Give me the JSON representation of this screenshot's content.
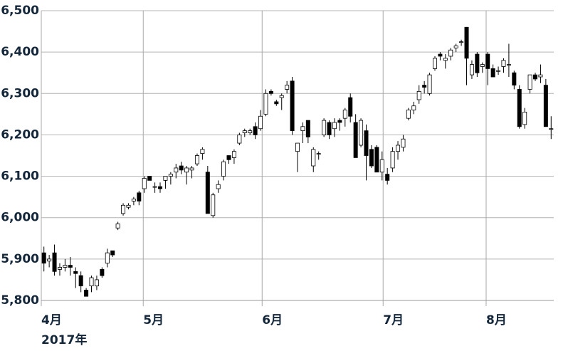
{
  "chart_data": {
    "type": "candlestick",
    "open": [
      5915,
      5895,
      5915,
      5875,
      5880,
      5885,
      5870,
      5860,
      5825,
      5835,
      5835,
      5875,
      5890,
      5920,
      5975,
      6010,
      6025,
      6040,
      6060,
      6070,
      6100,
      6075,
      6075,
      6090,
      6100,
      6110,
      6125,
      6110,
      6115,
      6130,
      6155,
      6110,
      6005,
      6070,
      6100,
      6150,
      6145,
      6180,
      6205,
      6205,
      6220,
      6215,
      6250,
      6305,
      6280,
      6290,
      6310,
      6330,
      6160,
      6210,
      6235,
      6125,
      6155,
      6200,
      6230,
      6215,
      6235,
      6240,
      6290,
      6230,
      6175,
      6210,
      6165,
      6170,
      6110,
      6105,
      6120,
      6160,
      6170,
      6240,
      6260,
      6285,
      6320,
      6300,
      6360,
      6395,
      6380,
      6390,
      6410,
      6425,
      6460,
      6345,
      6395,
      6365,
      6395,
      6360,
      6355,
      6365,
      6370,
      6350,
      6310,
      6225,
      6310,
      6345,
      6340,
      6320,
      6215
    ],
    "high": [
      5930,
      5910,
      5935,
      5890,
      5900,
      5905,
      5880,
      5870,
      5830,
      5860,
      5860,
      5880,
      5925,
      5920,
      5990,
      6035,
      6035,
      6050,
      6065,
      6100,
      6100,
      6085,
      6085,
      6100,
      6110,
      6130,
      6135,
      6125,
      6125,
      6155,
      6170,
      6125,
      6060,
      6090,
      6140,
      6150,
      6165,
      6205,
      6215,
      6215,
      6230,
      6260,
      6310,
      6310,
      6285,
      6300,
      6330,
      6340,
      6180,
      6230,
      6235,
      6170,
      6160,
      6240,
      6235,
      6240,
      6240,
      6265,
      6300,
      6250,
      6240,
      6225,
      6175,
      6175,
      6160,
      6120,
      6170,
      6185,
      6200,
      6265,
      6280,
      6320,
      6330,
      6350,
      6390,
      6400,
      6395,
      6410,
      6420,
      6430,
      6460,
      6380,
      6400,
      6375,
      6400,
      6370,
      6365,
      6385,
      6420,
      6355,
      6320,
      6265,
      6345,
      6350,
      6370,
      6335,
      6245
    ],
    "low": [
      5870,
      5880,
      5860,
      5860,
      5870,
      5860,
      5830,
      5820,
      5810,
      5820,
      5825,
      5855,
      5880,
      5905,
      5970,
      6005,
      6020,
      6030,
      6030,
      6060,
      6090,
      6060,
      6060,
      6070,
      6080,
      6095,
      6105,
      6080,
      6095,
      6125,
      6140,
      6010,
      6000,
      6060,
      6090,
      6130,
      6130,
      6175,
      6195,
      6200,
      6190,
      6210,
      6245,
      6295,
      6270,
      6260,
      6300,
      6200,
      6110,
      6180,
      6180,
      6110,
      6140,
      6195,
      6190,
      6195,
      6210,
      6220,
      6230,
      6145,
      6170,
      6090,
      6120,
      6110,
      6090,
      6080,
      6110,
      6140,
      6160,
      6235,
      6250,
      6275,
      6300,
      6295,
      6355,
      6380,
      6360,
      6380,
      6400,
      6415,
      6320,
      6335,
      6340,
      6350,
      6320,
      6340,
      6345,
      6350,
      6340,
      6310,
      6215,
      6215,
      6300,
      6330,
      6325,
      6220,
      6190
    ],
    "close": [
      5890,
      5900,
      5870,
      5880,
      5885,
      5880,
      5865,
      5835,
      5810,
      5855,
      5850,
      5860,
      5915,
      5910,
      5985,
      6030,
      6030,
      6045,
      6040,
      6095,
      6090,
      6075,
      6070,
      6100,
      6105,
      6120,
      6115,
      6120,
      6120,
      6150,
      6165,
      6010,
      6055,
      6080,
      6135,
      6140,
      6160,
      6200,
      6210,
      6210,
      6200,
      6245,
      6300,
      6300,
      6275,
      6295,
      6320,
      6210,
      6180,
      6220,
      6195,
      6165,
      6155,
      6235,
      6200,
      6230,
      6230,
      6260,
      6245,
      6145,
      6235,
      6150,
      6125,
      6110,
      6140,
      6090,
      6160,
      6175,
      6190,
      6260,
      6270,
      6305,
      6315,
      6345,
      6385,
      6390,
      6385,
      6405,
      6415,
      6425,
      6385,
      6370,
      6350,
      6370,
      6360,
      6340,
      6355,
      6380,
      6370,
      6320,
      6220,
      6255,
      6345,
      6335,
      6345,
      6220,
      6215
    ],
    "up_color": "#ffffff",
    "down_color": "#000000",
    "grid": true,
    "xlim": [
      -0.5,
      96.5
    ],
    "xticks": [
      {
        "value": -0.5,
        "label": "4月"
      },
      {
        "value": 18.8,
        "label": "5月"
      },
      {
        "value": 41.3,
        "label": "6月"
      },
      {
        "value": 64.2,
        "label": "7月"
      },
      {
        "value": 83.7,
        "label": "8月"
      }
    ],
    "x_year_label": "2017年",
    "ylim": [
      5800,
      6500
    ],
    "yticks": [
      {
        "value": 5800,
        "label": "5,800"
      },
      {
        "value": 5900,
        "label": "5,900"
      },
      {
        "value": 6000,
        "label": "6,000"
      },
      {
        "value": 6100,
        "label": "6,100"
      },
      {
        "value": 6200,
        "label": "6,200"
      },
      {
        "value": 6300,
        "label": "6,300"
      },
      {
        "value": 6400,
        "label": "6,400"
      },
      {
        "value": 6500,
        "label": "6,500"
      }
    ]
  }
}
